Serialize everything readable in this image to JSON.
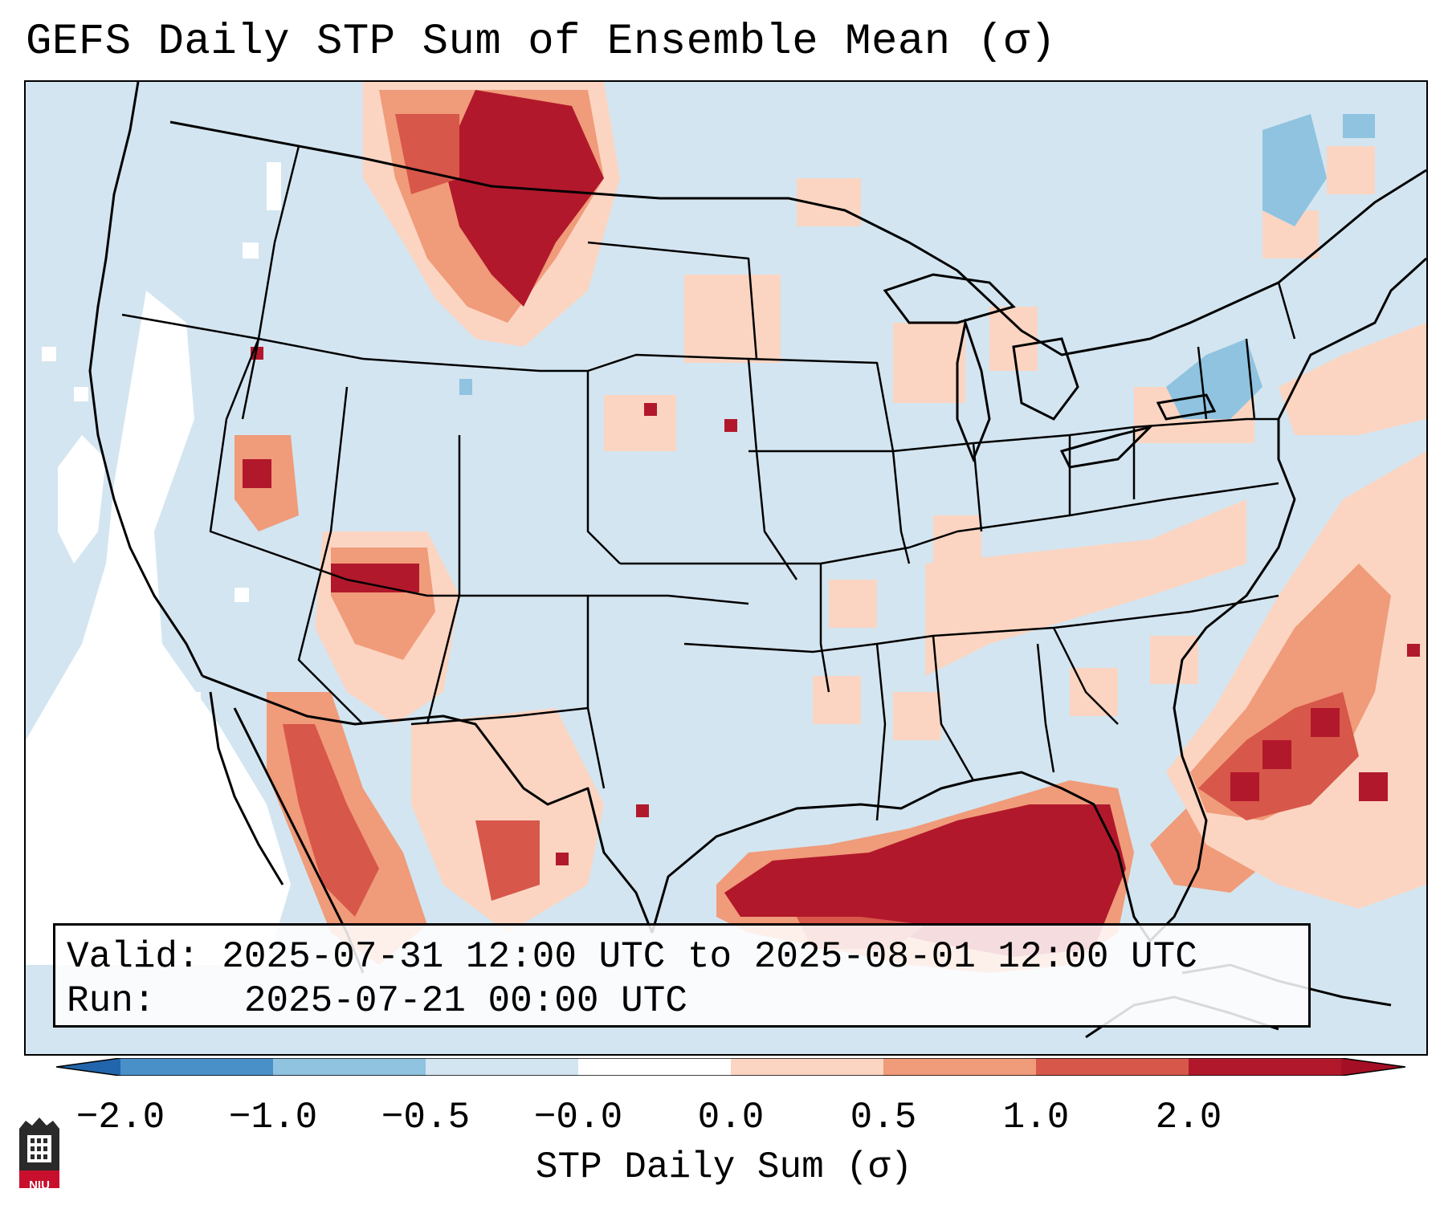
{
  "title": "GEFS Daily STP Sum of Ensemble Mean (σ)",
  "info": {
    "valid_label": "Valid:",
    "valid_value": "2025-07-31 12:00 UTC to 2025-08-01 12:00 UTC",
    "run_label": "Run:",
    "run_value": "2025-07-21 00:00 UTC"
  },
  "colorbar": {
    "label": "STP Daily Sum (σ)",
    "ticks": [
      "−2.0",
      "−1.0",
      "−0.5",
      "−0.0",
      "0.0",
      "0.5",
      "1.0",
      "2.0"
    ],
    "bin_colors": [
      "#4a90c8",
      "#8fc3e0",
      "#d3e5f0",
      "#ffffff",
      "#fbd5c2",
      "#f09b7a",
      "#d7574a",
      "#b2182b"
    ],
    "under_color": "#2166ac",
    "over_color": "#a50f26"
  },
  "logo": {
    "text": "NIU",
    "name": "Northern Illinois University"
  },
  "colors": {
    "background_field": "#d3e5f0",
    "white": "#ffffff",
    "light_red": "#fbd5c2",
    "medium_red": "#f09b7a",
    "red": "#d7574a",
    "dark_red": "#b2182b",
    "blue": "#8fc3e0"
  }
}
